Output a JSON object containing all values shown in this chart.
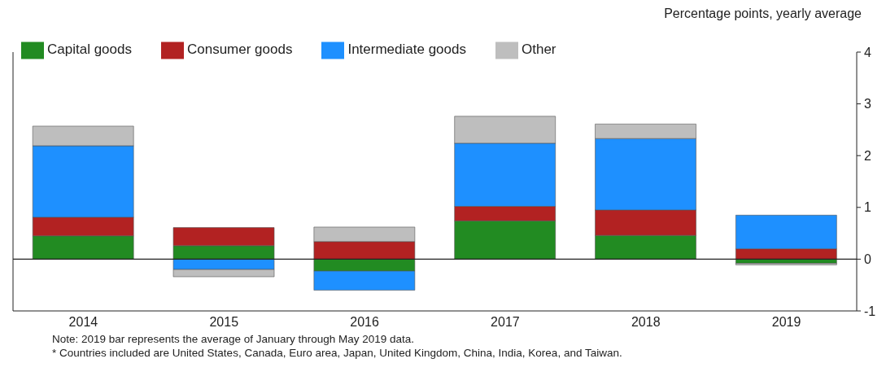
{
  "chart_data": {
    "type": "bar",
    "stacked": true,
    "ylabel": "Percentage points, yearly average",
    "categories": [
      "2014",
      "2015",
      "2016",
      "2017",
      "2018",
      "2019"
    ],
    "series": [
      {
        "name": "Capital goods",
        "color": "#228b22",
        "values": [
          0.45,
          0.26,
          -0.23,
          0.74,
          0.46,
          -0.08
        ]
      },
      {
        "name": "Consumer goods",
        "color": "#b22222",
        "values": [
          0.36,
          0.35,
          0.34,
          0.28,
          0.49,
          0.2
        ]
      },
      {
        "name": "Intermediate goods",
        "color": "#1e90ff",
        "values": [
          1.38,
          -0.2,
          -0.37,
          1.22,
          1.38,
          0.65
        ]
      },
      {
        "name": "Other",
        "color": "#bebebe",
        "values": [
          0.38,
          -0.14,
          0.28,
          0.52,
          0.28,
          -0.03
        ]
      }
    ],
    "ylim": [
      -1,
      4
    ],
    "yticks": [
      -1,
      0,
      1,
      2,
      3,
      4
    ],
    "grid": false,
    "legend": "top left",
    "ref_lines": [
      {
        "axis": "y",
        "value": 0
      }
    ],
    "annotations": [
      "Note: 2019 bar represents the average of January through May 2019 data.",
      "* Countries included are United States, Canada, Euro area, Japan, United Kingdom, China, India, Korea, and Taiwan."
    ]
  }
}
